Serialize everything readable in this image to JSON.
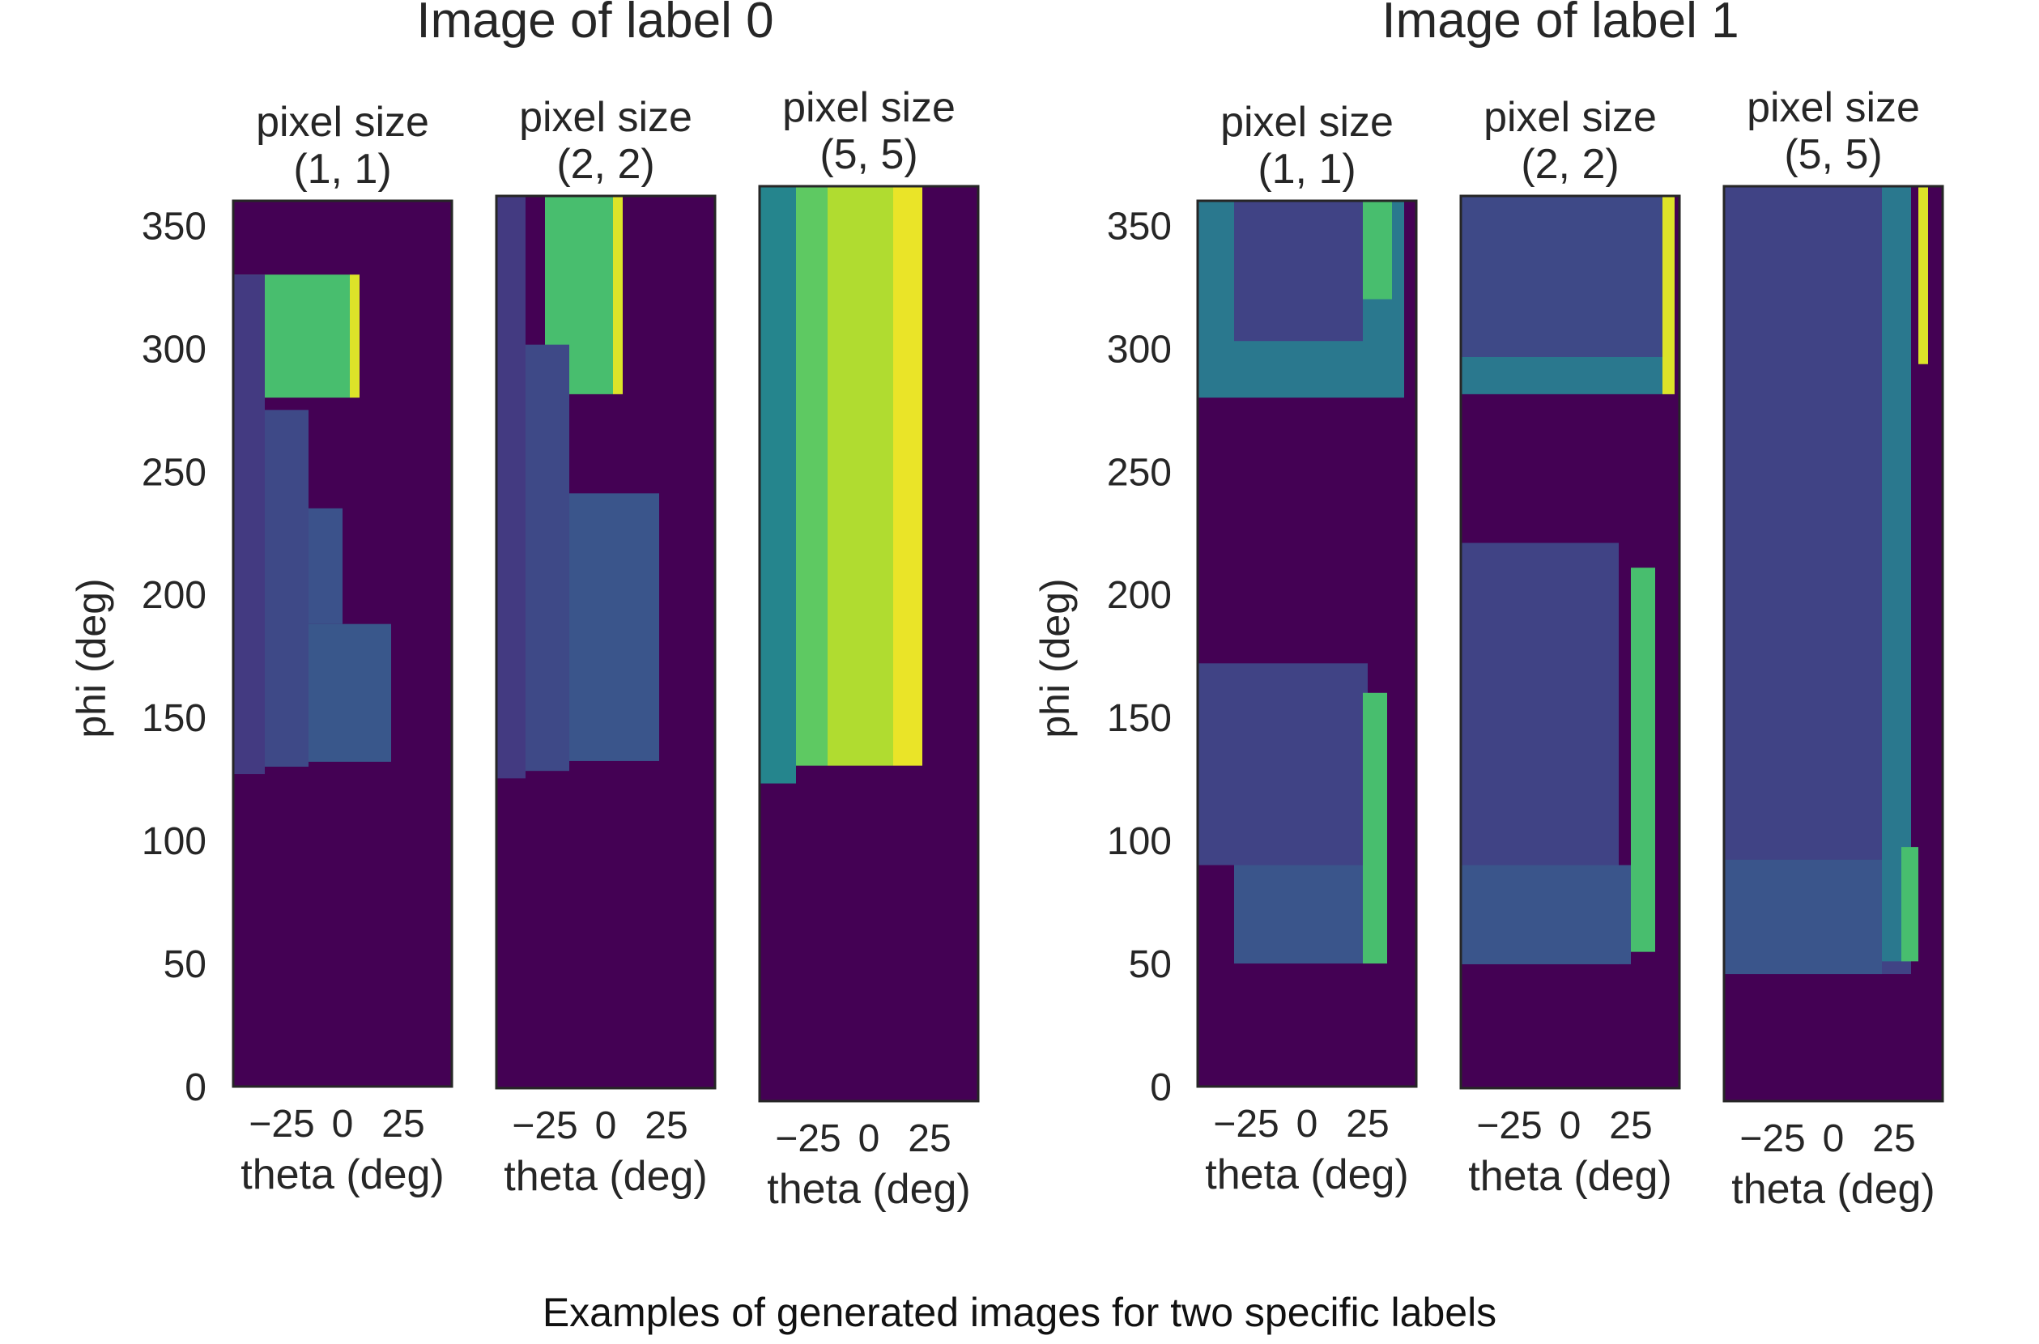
{
  "caption": "Examples of generated images for two specific labels",
  "colors": {
    "background": "#440154",
    "frame": "#262626",
    "viridis": [
      "#440154",
      "#472d7b",
      "#3b528b",
      "#2c728e",
      "#21918c",
      "#28ae80",
      "#5ec962",
      "#addc30",
      "#fde725"
    ]
  },
  "chart_data": [
    {
      "type": "heatmap",
      "group_title": "Image of label 0",
      "ylabel": "phi (deg)",
      "yticks": [
        "350",
        "300",
        "250",
        "200",
        "150",
        "100",
        "50",
        "0"
      ],
      "panels": [
        {
          "title_line1": "pixel size",
          "title_line2": "(1, 1)",
          "xlabel": "theta (deg)",
          "xticks": [
            "−25",
            "0",
            "25"
          ],
          "xlim": [
            -45,
            45
          ],
          "ylim": [
            0,
            360
          ],
          "regions": [
            {
              "x": [
                -45,
                3
              ],
              "y": [
                280,
                330
              ],
              "value": 0.7
            },
            {
              "x": [
                -45,
                -32
              ],
              "y": [
                127,
                330
              ],
              "value": 0.17
            },
            {
              "x": [
                -32,
                -14
              ],
              "y": [
                130,
                275
              ],
              "value": 0.22
            },
            {
              "x": [
                -14,
                20
              ],
              "y": [
                132,
                188
              ],
              "value": 0.27
            },
            {
              "x": [
                -14,
                0
              ],
              "y": [
                188,
                235
              ],
              "value": 0.25
            },
            {
              "x": [
                3,
                7
              ],
              "y": [
                280,
                330
              ],
              "value": 0.95
            }
          ]
        },
        {
          "title_line1": "pixel size",
          "title_line2": "(2, 2)",
          "xlabel": "theta (deg)",
          "xticks": [
            "−25",
            "0",
            "25"
          ],
          "xlim": [
            -45,
            45
          ],
          "ylim": [
            0,
            360
          ],
          "regions": [
            {
              "x": [
                -25,
                3
              ],
              "y": [
                280,
                360
              ],
              "value": 0.7
            },
            {
              "x": [
                -45,
                -33
              ],
              "y": [
                125,
                360
              ],
              "value": 0.17
            },
            {
              "x": [
                -33,
                -15
              ],
              "y": [
                128,
                300
              ],
              "value": 0.22
            },
            {
              "x": [
                -15,
                22
              ],
              "y": [
                132,
                240
              ],
              "value": 0.26
            },
            {
              "x": [
                3,
                7
              ],
              "y": [
                280,
                360
              ],
              "value": 0.95
            }
          ]
        },
        {
          "title_line1": "pixel size",
          "title_line2": "(5, 5)",
          "xlabel": "theta (deg)",
          "xticks": [
            "−25",
            "0",
            "25"
          ],
          "xlim": [
            -45,
            45
          ],
          "ylim": [
            0,
            360
          ],
          "regions": [
            {
              "x": [
                -45,
                -30
              ],
              "y": [
                125,
                360
              ],
              "value": 0.45
            },
            {
              "x": [
                -30,
                -17
              ],
              "y": [
                132,
                360
              ],
              "value": 0.75
            },
            {
              "x": [
                -17,
                10
              ],
              "y": [
                132,
                360
              ],
              "value": 0.88
            },
            {
              "x": [
                10,
                22
              ],
              "y": [
                132,
                360
              ],
              "value": 0.97
            }
          ]
        }
      ]
    },
    {
      "type": "heatmap",
      "group_title": "Image of label 1",
      "ylabel": "phi (deg)",
      "yticks": [
        "350",
        "300",
        "250",
        "200",
        "150",
        "100",
        "50",
        "0"
      ],
      "panels": [
        {
          "title_line1": "pixel size",
          "title_line2": "(1, 1)",
          "xlabel": "theta (deg)",
          "xticks": [
            "−25",
            "0",
            "25"
          ],
          "xlim": [
            -45,
            45
          ],
          "ylim": [
            0,
            360
          ],
          "regions": [
            {
              "x": [
                -45,
                40
              ],
              "y": [
                280,
                360
              ],
              "value": 0.4
            },
            {
              "x": [
                -30,
                23
              ],
              "y": [
                303,
                360
              ],
              "value": 0.2
            },
            {
              "x": [
                23,
                35
              ],
              "y": [
                320,
                360
              ],
              "value": 0.7
            },
            {
              "x": [
                -45,
                25
              ],
              "y": [
                90,
                172
              ],
              "value": 0.2
            },
            {
              "x": [
                -30,
                23
              ],
              "y": [
                50,
                90
              ],
              "value": 0.26
            },
            {
              "x": [
                23,
                33
              ],
              "y": [
                50,
                160
              ],
              "value": 0.7
            }
          ]
        },
        {
          "title_line1": "pixel size",
          "title_line2": "(2, 2)",
          "xlabel": "theta (deg)",
          "xticks": [
            "−25",
            "0",
            "25"
          ],
          "xlim": [
            -45,
            45
          ],
          "ylim": [
            0,
            360
          ],
          "regions": [
            {
              "x": [
                -45,
                43
              ],
              "y": [
                280,
                360
              ],
              "value": 0.4
            },
            {
              "x": [
                -45,
                38
              ],
              "y": [
                295,
                360
              ],
              "value": 0.22
            },
            {
              "x": [
                38,
                43
              ],
              "y": [
                280,
                360
              ],
              "value": 0.95
            },
            {
              "x": [
                -45,
                20
              ],
              "y": [
                50,
                220
              ],
              "value": 0.2
            },
            {
              "x": [
                -45,
                25
              ],
              "y": [
                50,
                90
              ],
              "value": 0.26
            },
            {
              "x": [
                25,
                35
              ],
              "y": [
                55,
                210
              ],
              "value": 0.7
            }
          ]
        },
        {
          "title_line1": "pixel size",
          "title_line2": "(5, 5)",
          "xlabel": "theta (deg)",
          "xticks": [
            "−25",
            "0",
            "25"
          ],
          "xlim": [
            -45,
            45
          ],
          "ylim": [
            0,
            360
          ],
          "regions": [
            {
              "x": [
                -45,
                32
              ],
              "y": [
                50,
                360
              ],
              "value": 0.2
            },
            {
              "x": [
                -45,
                20
              ],
              "y": [
                50,
                95
              ],
              "value": 0.26
            },
            {
              "x": [
                20,
                32
              ],
              "y": [
                55,
                360
              ],
              "value": 0.4
            },
            {
              "x": [
                28,
                35
              ],
              "y": [
                55,
                100
              ],
              "value": 0.7
            },
            {
              "x": [
                35,
                39
              ],
              "y": [
                290,
                360
              ],
              "value": 0.95
            }
          ]
        }
      ]
    }
  ]
}
